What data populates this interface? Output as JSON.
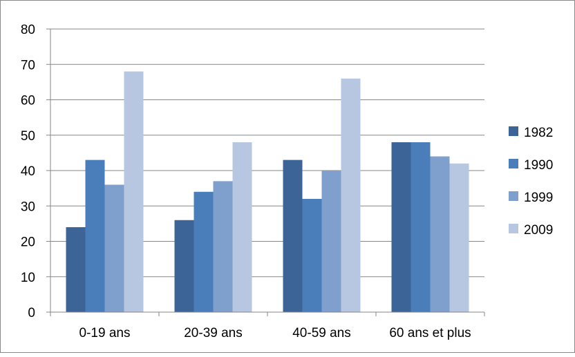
{
  "colors": {
    "series": [
      "#3c6496",
      "#4a7ebb",
      "#7f9fcc",
      "#b7c7e2"
    ],
    "grid": "#868686",
    "axis": "#868686",
    "text": "#000000"
  },
  "chart_data": {
    "type": "bar",
    "title": "",
    "xlabel": "",
    "ylabel": "",
    "categories": [
      "0-19 ans",
      "20-39 ans",
      "40-59 ans",
      "60 ans et plus"
    ],
    "series": [
      {
        "name": "1982",
        "values": [
          24,
          26,
          43,
          48
        ]
      },
      {
        "name": "1990",
        "values": [
          43,
          34,
          32,
          48
        ]
      },
      {
        "name": "1999",
        "values": [
          36,
          37,
          40,
          44
        ]
      },
      {
        "name": "2009",
        "values": [
          68,
          48,
          66,
          42
        ]
      }
    ],
    "ylim": [
      0,
      80
    ],
    "yticks": [
      "0",
      "10",
      "20",
      "30",
      "40",
      "50",
      "60",
      "70",
      "80"
    ],
    "grid": true,
    "legend_position": "right"
  }
}
